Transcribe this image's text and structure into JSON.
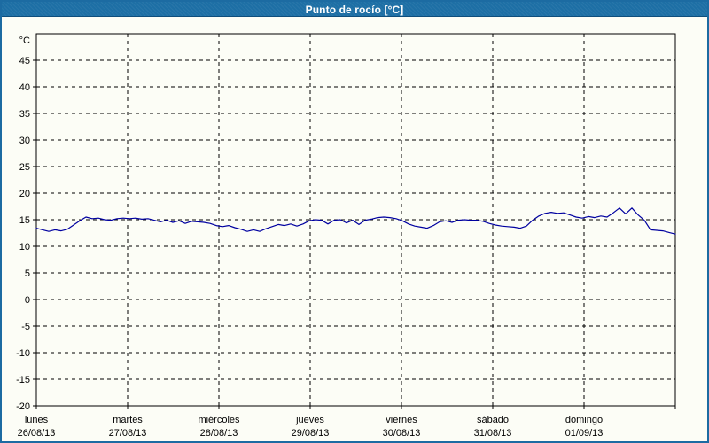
{
  "header": {
    "title": "Punto de rocío [°C]",
    "bg_color": "#1d6fa5",
    "text_color": "#ffffff",
    "frame_color": "#1c6ba2"
  },
  "chart_data": {
    "type": "line",
    "title": "Punto de rocío [°C]",
    "ylabel": "°C",
    "xlabel": "",
    "ylim": [
      -20,
      50
    ],
    "ytick_min": -20,
    "ytick_max": 45,
    "ytick_step": 5,
    "grid": "dashed",
    "grid_color": "#000000",
    "plot_bg": "#fcfdf6",
    "legend_position": "none",
    "categories": [
      {
        "name": "lunes",
        "date": "26/08/13"
      },
      {
        "name": "martes",
        "date": "27/08/13"
      },
      {
        "name": "miércoles",
        "date": "28/08/13"
      },
      {
        "name": "jueves",
        "date": "29/08/13"
      },
      {
        "name": "viernes",
        "date": "30/08/13"
      },
      {
        "name": "sábado",
        "date": "31/08/13"
      },
      {
        "name": "domingo",
        "date": "01/09/13"
      }
    ],
    "series": [
      {
        "name": "Punto de rocío [°C]",
        "color": "#0000a0",
        "values": [
          13.4,
          13.1,
          12.8,
          13.1,
          12.9,
          13.2,
          14.0,
          14.8,
          15.5,
          15.2,
          15.3,
          15.0,
          14.9,
          15.2,
          15.3,
          15.2,
          15.3,
          15.1,
          15.2,
          14.9,
          14.6,
          14.9,
          14.5,
          14.8,
          14.3,
          14.7,
          14.6,
          14.5,
          14.3,
          13.9,
          13.7,
          13.9,
          13.5,
          13.2,
          12.8,
          13.1,
          12.8,
          13.3,
          13.7,
          14.1,
          13.9,
          14.2,
          13.8,
          14.2,
          14.8,
          15.0,
          14.9,
          14.2,
          14.9,
          15.0,
          14.4,
          14.9,
          14.1,
          14.9,
          15.1,
          15.4,
          15.5,
          15.4,
          15.2,
          14.8,
          14.2,
          13.8,
          13.6,
          13.4,
          13.9,
          14.6,
          14.8,
          14.5,
          14.9,
          15.0,
          14.9,
          14.9,
          14.7,
          14.3,
          14.0,
          13.8,
          13.7,
          13.6,
          13.4,
          13.8,
          14.9,
          15.7,
          16.2,
          16.4,
          16.2,
          16.3,
          15.9,
          15.5,
          15.3,
          15.6,
          15.4,
          15.7,
          15.5,
          16.3,
          17.2,
          16.1,
          17.2,
          15.9,
          14.9,
          13.1,
          13.0,
          12.9,
          12.6,
          12.3
        ]
      }
    ]
  }
}
